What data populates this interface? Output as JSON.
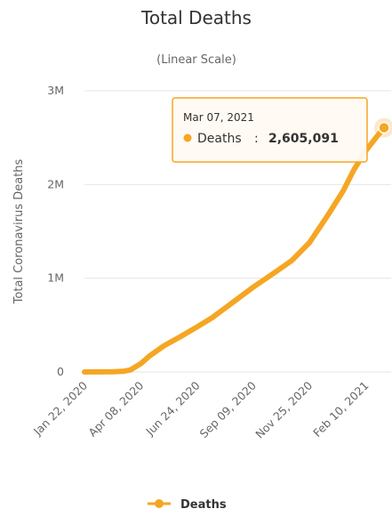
{
  "chart_data": {
    "type": "line",
    "title": "Total Deaths",
    "subtitle": "(Linear Scale)",
    "ylabel": "Total Coronavirus Deaths",
    "xlabel": "",
    "ylim": [
      0,
      3000000
    ],
    "y_ticks": [
      {
        "value": 0,
        "label": "0"
      },
      {
        "value": 1000000,
        "label": "1M"
      },
      {
        "value": 2000000,
        "label": "2M"
      },
      {
        "value": 3000000,
        "label": "3M"
      }
    ],
    "x_range": [
      "2020-01-22",
      "2021-03-07"
    ],
    "x_ticks": [
      {
        "date": "2020-01-22",
        "label": "Jan 22, 2020"
      },
      {
        "date": "2020-04-08",
        "label": "Apr 08, 2020"
      },
      {
        "date": "2020-06-24",
        "label": "Jun 24, 2020"
      },
      {
        "date": "2020-09-09",
        "label": "Sep 09, 2020"
      },
      {
        "date": "2020-11-25",
        "label": "Nov 25, 2020"
      },
      {
        "date": "2021-02-10",
        "label": "Feb 10, 2021"
      }
    ],
    "grid": true,
    "legend_position": "bottom-center",
    "series": [
      {
        "name": "Deaths",
        "color": "#f5a623",
        "points": [
          {
            "x": "2020-01-22",
            "y": 0
          },
          {
            "x": "2020-03-01",
            "y": 3000
          },
          {
            "x": "2020-03-15",
            "y": 6500
          },
          {
            "x": "2020-03-25",
            "y": 22000
          },
          {
            "x": "2020-04-08",
            "y": 88000
          },
          {
            "x": "2020-04-20",
            "y": 170000
          },
          {
            "x": "2020-05-10",
            "y": 280000
          },
          {
            "x": "2020-06-01",
            "y": 375000
          },
          {
            "x": "2020-06-24",
            "y": 480000
          },
          {
            "x": "2020-07-15",
            "y": 580000
          },
          {
            "x": "2020-08-10",
            "y": 730000
          },
          {
            "x": "2020-09-09",
            "y": 905000
          },
          {
            "x": "2020-10-10",
            "y": 1070000
          },
          {
            "x": "2020-11-01",
            "y": 1190000
          },
          {
            "x": "2020-11-25",
            "y": 1380000
          },
          {
            "x": "2020-12-20",
            "y": 1670000
          },
          {
            "x": "2021-01-10",
            "y": 1930000
          },
          {
            "x": "2021-01-25",
            "y": 2160000
          },
          {
            "x": "2021-02-10",
            "y": 2360000
          },
          {
            "x": "2021-02-25",
            "y": 2510000
          },
          {
            "x": "2021-03-07",
            "y": 2605091
          }
        ]
      }
    ],
    "tooltip": {
      "date": "Mar 07, 2021",
      "series_name": "Deaths",
      "value_label": "2,605,091"
    }
  }
}
